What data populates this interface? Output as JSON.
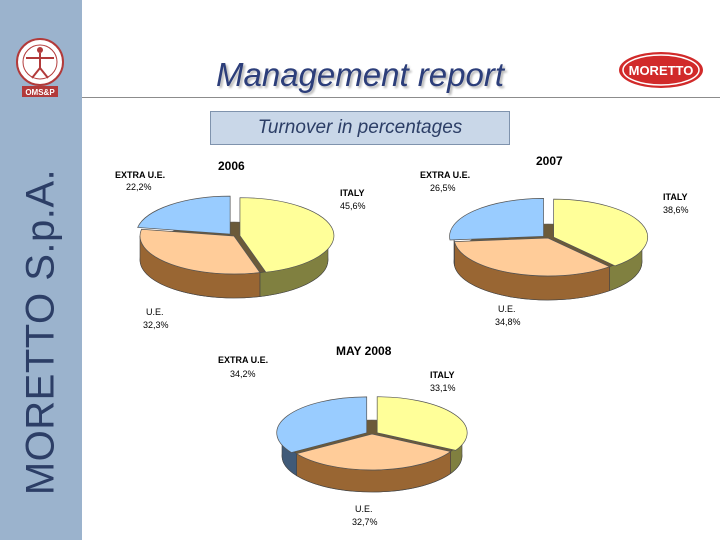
{
  "header": {
    "title": "Management report",
    "subtitle": "Turnover in percentages",
    "left_logo_text": "OMS&P",
    "right_logo_text": "MORETTO"
  },
  "sidebar": {
    "vertical_text": "MORETTO S.p.A."
  },
  "colors": {
    "italy": "#ffff99",
    "extra_ue": "#99ccff",
    "ue": "#ffcc99",
    "ue_side": "#996633",
    "sidebar": "#9bb3cd",
    "title": "#2c3e7a"
  },
  "chart_data": [
    {
      "type": "pie",
      "title": "2006",
      "categories": [
        "ITALY",
        "U.E.",
        "EXTRA U.E."
      ],
      "values": [
        45.6,
        32.3,
        22.2
      ],
      "value_labels": [
        "45,6%",
        "32,3%",
        "22,2%"
      ]
    },
    {
      "type": "pie",
      "title": "2007",
      "categories": [
        "ITALY",
        "U.E.",
        "EXTRA U.E."
      ],
      "values": [
        38.6,
        34.8,
        26.5
      ],
      "value_labels": [
        "38,6%",
        "34,8%",
        "26,5%"
      ]
    },
    {
      "type": "pie",
      "title": "MAY 2008",
      "categories": [
        "ITALY",
        "U.E.",
        "EXTRA U.E."
      ],
      "values": [
        33.1,
        32.7,
        34.2
      ],
      "value_labels": [
        "33,1%",
        "32,7%",
        "34,2%"
      ]
    }
  ]
}
